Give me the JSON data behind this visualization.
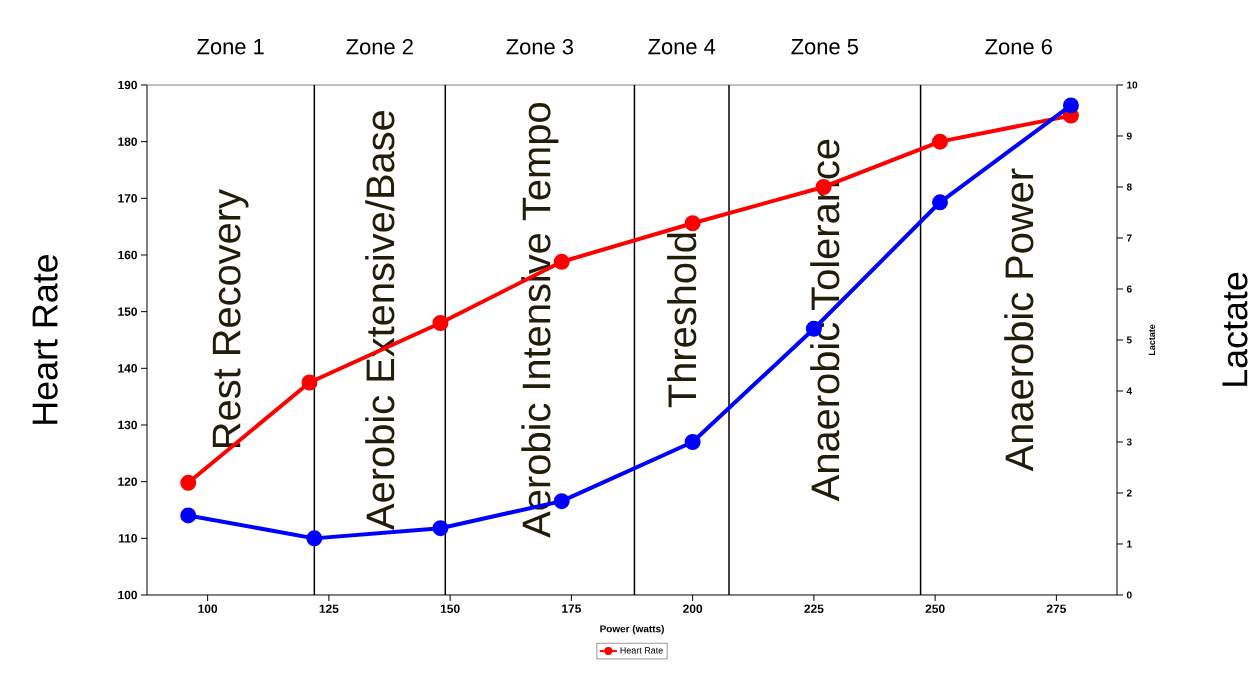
{
  "chart_data": {
    "type": "line",
    "xlabel": "Power (watts)",
    "ylabel": "Heart Rate",
    "y2label": "Lactate",
    "xlim": [
      87.5,
      287.5
    ],
    "xticks": [
      100,
      125,
      150,
      175,
      200,
      225,
      250,
      275
    ],
    "ylim": [
      100,
      190
    ],
    "yticks": [
      100,
      110,
      120,
      130,
      140,
      150,
      160,
      170,
      180,
      190
    ],
    "y2lim": [
      0,
      10
    ],
    "y2ticks": [
      0,
      1,
      2,
      3,
      4,
      5,
      6,
      7,
      8,
      9,
      10
    ],
    "series": [
      {
        "name": "Heart Rate",
        "color": "#ff0000",
        "x": [
          96,
          121,
          148,
          173,
          200,
          227,
          251,
          278
        ],
        "values": [
          119.8,
          137.5,
          148,
          158.8,
          165.6,
          172,
          180,
          184.6
        ]
      },
      {
        "color": "#0000ff",
        "axis": "y2",
        "x": [
          96,
          122,
          148,
          173,
          200,
          225,
          251,
          278
        ],
        "values": [
          1.56,
          1.11,
          1.31,
          1.84,
          3.0,
          5.22,
          7.7,
          9.6
        ]
      }
    ],
    "ref_lines": [
      {
        "axis": "x",
        "value": 122,
        "color": "#000000"
      },
      {
        "axis": "x",
        "value": 149,
        "color": "#000000"
      },
      {
        "axis": "x",
        "value": 188,
        "color": "#000000"
      },
      {
        "axis": "x",
        "value": 207.5,
        "color": "#000000"
      },
      {
        "axis": "x",
        "value": 247,
        "color": "#000000"
      }
    ],
    "annotations": [
      "Zone 1",
      "Zone 2",
      "Zone 3",
      "Zone 4",
      "Zone 5",
      "Zone 6",
      "Rest Recovery",
      "Aerobic Extensive/Base",
      "Aerobic Intensive Tempo",
      "Threshold",
      "Anaerobic Tolerance",
      "Anaerobic Power",
      "Lactate"
    ],
    "marker": "circle",
    "line_style": "solid",
    "legend": "bottom",
    "grid": false
  }
}
